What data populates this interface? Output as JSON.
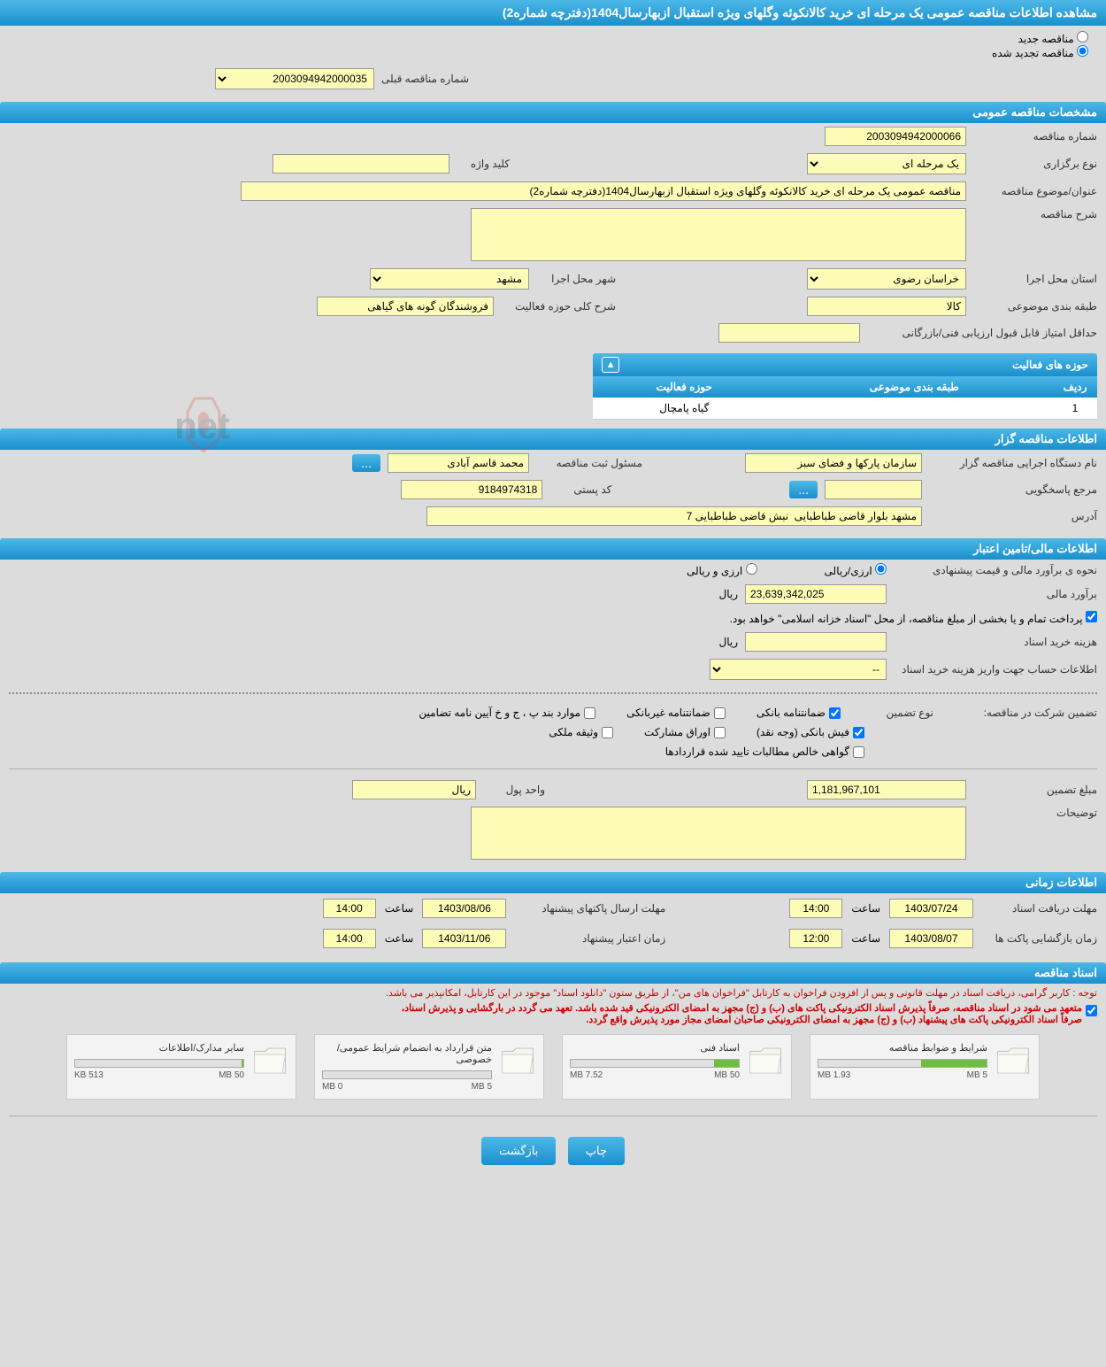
{
  "page_title": "مشاهده اطلاعات مناقصه عمومی یک مرحله ای خرید کالانکوئه وگلهای ویژه استقبال ازبهارسال1404(دفترچه شماره2)",
  "tender_type": {
    "new_label": "مناقصه جدید",
    "renewed_label": "مناقصه تجدید شده",
    "selected": "renewed"
  },
  "prev_number": {
    "label": "شماره مناقصه قبلی",
    "value": "2003094942000035"
  },
  "sections": {
    "general": "مشخصات مناقصه عمومی",
    "organizer": "اطلاعات مناقصه گزار",
    "financial": "اطلاعات مالی/تامین اعتبار",
    "timing": "اطلاعات زمانی",
    "documents": "اسناد مناقصه"
  },
  "general": {
    "tender_number_label": "شماره مناقصه",
    "tender_number": "2003094942000066",
    "holding_type_label": "نوع برگزاری",
    "holding_type_value": "یک مرحله ای",
    "keyword_label": "کلید واژه",
    "keyword_value": "",
    "title_label": "عنوان/موضوع مناقصه",
    "title_value": "مناقصه عمومی یک مرحله ای خرید کالانکوئه وگلهای ویژه استقبال ازبهارسال1404(دفترچه شماره2)",
    "description_label": "شرح مناقصه",
    "description_value": "",
    "province_label": "استان محل اجرا",
    "province_value": "خراسان رضوی",
    "city_label": "شهر محل اجرا",
    "city_value": "مشهد",
    "subject_class_label": "طبقه بندی موضوعی",
    "subject_class_value": "کالا",
    "activity_scope_label": "شرح کلی حوزه فعالیت",
    "activity_scope_value": "فروشندگان گونه های گیاهی",
    "min_score_label": "حداقل امتیاز قابل قبول ارزیابی فنی/بازرگانی",
    "min_score_value": ""
  },
  "activity_table": {
    "header": "حوزه های فعالیت",
    "col_row": "ردیف",
    "col_class": "طبقه بندی موضوعی",
    "col_activity": "حوزه فعالیت",
    "rows": [
      {
        "n": "1",
        "class": "",
        "activity": "گیاه پامچال"
      }
    ]
  },
  "organizer": {
    "agency_label": "نام دستگاه اجرایی مناقصه گزار",
    "agency_value": "سازمان پارکها و فضای سبز",
    "registrar_label": "مسئول ثبت مناقصه",
    "registrar_value": "محمد قاسم آبادی",
    "response_ref_label": "مرجع پاسخگویی",
    "response_ref_value": "",
    "postal_label": "کد پستی",
    "postal_value": "9184974318",
    "address_label": "آدرس",
    "address_value": "مشهد بلوار قاضی طباطبایی  نبش قاضی طباطبایی 7"
  },
  "financial": {
    "estimate_method_label": "نحوه ی برآورد مالی و قیمت پیشنهادی",
    "opt_rial": "ارزی/ریالی",
    "opt_both": "ارزی و ریالی",
    "estimate_label": "برآورد مالی",
    "estimate_value": "23,639,342,025",
    "currency": "ریال",
    "payment_note": "پرداخت تمام و یا بخشی از مبلغ مناقصه، از محل \"اسناد خزانه اسلامی\" خواهد بود.",
    "doc_fee_label": "هزینه خرید اسناد",
    "doc_fee_value": "",
    "account_info_label": "اطلاعات حساب جهت واریز هزینه خرید اسناد",
    "account_info_value": "--",
    "guarantee_section_label": "تضمین شرکت در مناقصه:",
    "guarantee_type_label": "نوع تضمین",
    "cb_bank": "ضمانتنامه بانکی",
    "cb_nonbank": "ضمانتنامه غیربانکی",
    "cb_bonds": "موارد بند پ ، ج و خ آیین نامه تضامین",
    "cb_cash": "فیش بانکی (وجه نقد)",
    "cb_partner": "اوراق مشارکت",
    "cb_deed": "وثیقه ملکی",
    "cb_receivables": "گواهی خالص مطالبات تایید شده قراردادها",
    "guarantee_amount_label": "مبلغ تضمین",
    "guarantee_amount_value": "1,181,967,101",
    "currency_unit_label": "واحد پول",
    "currency_unit_value": "ریال",
    "comments_label": "توضیحات",
    "comments_value": ""
  },
  "timing": {
    "doc_deadline_label": "مهلت دریافت اسناد",
    "doc_deadline_date": "1403/07/24",
    "doc_deadline_hour_label": "ساعت",
    "doc_deadline_hour": "14:00",
    "proposal_deadline_label": "مهلت ارسال پاکتهای پیشنهاد",
    "proposal_deadline_date": "1403/08/06",
    "proposal_deadline_hour": "14:00",
    "opening_label": "زمان بازگشایی پاکت ها",
    "opening_date": "1403/08/07",
    "opening_hour_label": "ساعت",
    "opening_hour": "12:00",
    "validity_label": "زمان اعتبار پیشنهاد",
    "validity_date": "1403/11/06",
    "validity_hour": "14:00"
  },
  "documents": {
    "note1": "توجه : کاربر گرامی، دریافت اسناد در مهلت قانونی و پس از افزودن فراخوان به کارتابل \"فراخوان های من\"، از طریق ستون \"دانلود اسناد\" موجود در این کارتابل، امکانپذیر می باشد.",
    "note2a": "متعهد می شود در اسناد مناقصه، صرفاً پذیرش اسناد الکترونیکی پاکت های (ب) و (ج) مجهز به امضای الکترونیکی قید شده باشد. تعهد می گردد در بارگشایی و پذیرش اسناد،",
    "note2b": "صرفاً اسناد الکترونیکی پاکت های پیشنهاد (ب) و (ج) مجهز به امضای الکترونیکی صاحبان امضای مجاز مورد پذیرش واقع گردد.",
    "files": [
      {
        "name": "شرایط و ضوابط مناقصه",
        "used": "1.93 MB",
        "cap": "5 MB",
        "pct": 39
      },
      {
        "name": "اسناد فنی",
        "used": "7.52 MB",
        "cap": "50 MB",
        "pct": 15
      },
      {
        "name": "متن قرارداد به انضمام شرایط عمومی/خصوصی",
        "used": "0 MB",
        "cap": "5 MB",
        "pct": 0
      },
      {
        "name": "سایر مدارک/اطلاعات",
        "used": "513 KB",
        "cap": "50 MB",
        "pct": 1
      }
    ]
  },
  "buttons": {
    "print": "چاپ",
    "back": "بازگشت"
  },
  "colors": {
    "header_top": "#4db8e8",
    "header_bottom": "#1a8fcc",
    "yellow_bg": "#fdfcb6",
    "page_bg": "#dcdcdc",
    "progress_fill": "#6dbf3f",
    "note_red": "#cc0000"
  }
}
